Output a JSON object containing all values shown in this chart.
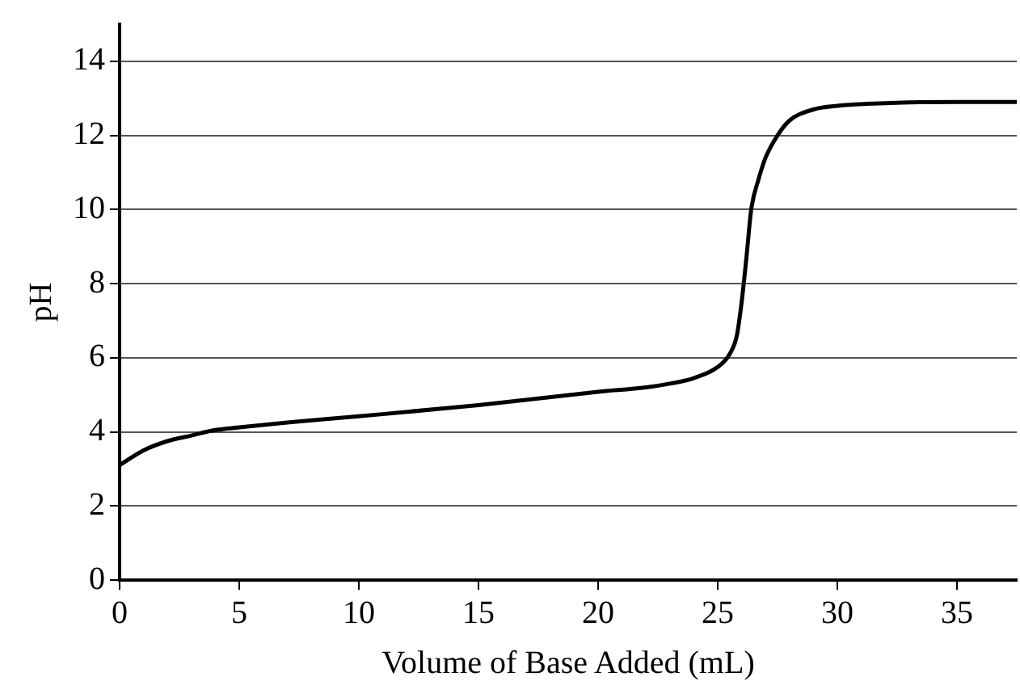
{
  "chart_data": {
    "type": "line",
    "xlabel": "Volume of Base Added (mL)",
    "ylabel": "pH",
    "xlim": [
      0,
      37.5
    ],
    "xticks": [
      0,
      5,
      10,
      15,
      20,
      25,
      30,
      35
    ],
    "ylim": [
      0,
      15
    ],
    "yticks": [
      0,
      2,
      4,
      6,
      8,
      10,
      12,
      14
    ],
    "grid": "y",
    "marker": "none",
    "line_style": "solid",
    "x": [
      0,
      1,
      2,
      3,
      4,
      5,
      7,
      10,
      15,
      20,
      22,
      23,
      24,
      25,
      25.5,
      25.8,
      26,
      26.2,
      26.4,
      26.7,
      27,
      27.5,
      28,
      29,
      30,
      32,
      35,
      37.5
    ],
    "series": [
      {
        "color": "#000000",
        "values": [
          3.1,
          3.5,
          3.75,
          3.9,
          4.05,
          4.12,
          4.25,
          4.42,
          4.72,
          5.08,
          5.2,
          5.3,
          5.45,
          5.75,
          6.1,
          6.6,
          7.5,
          8.7,
          10,
          10.8,
          11.4,
          12,
          12.4,
          12.7,
          12.8,
          12.87,
          12.9,
          12.9
        ]
      }
    ]
  }
}
